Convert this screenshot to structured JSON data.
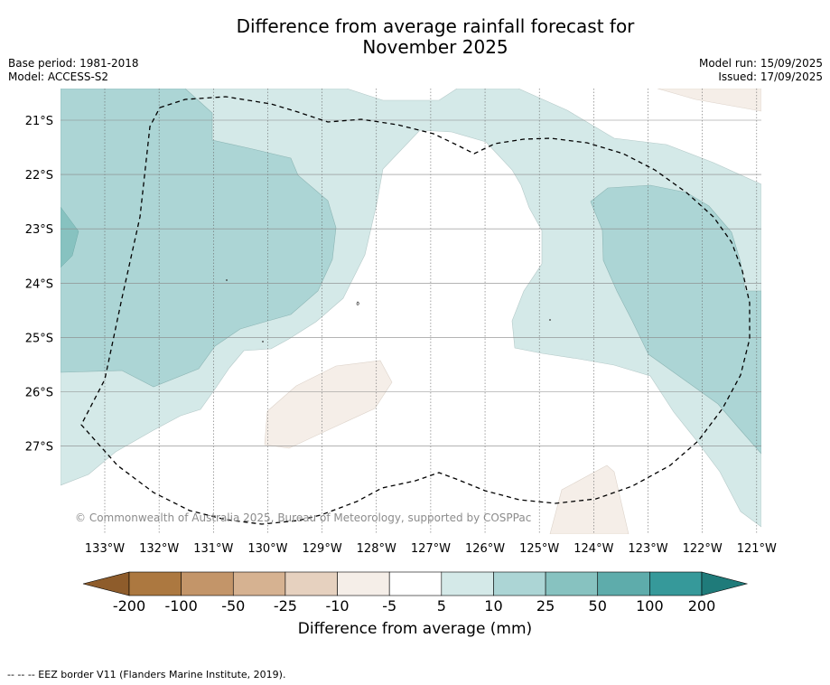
{
  "title_line1": "Difference from average rainfall forecast for",
  "title_line2": "November 2025",
  "base_period": "Base period: 1981-2018",
  "model": "Model: ACCESS-S2",
  "model_run": "Model run: 15/09/2025",
  "issued": "Issued: 17/09/2025",
  "copyright": "© Commonwealth of Australia 2025, Bureau of Meteorology, supported by COSPPac",
  "map": {
    "lon_labels": [
      "133°W",
      "132°W",
      "131°W",
      "130°W",
      "129°W",
      "128°W",
      "127°W",
      "126°W",
      "125°W",
      "124°W",
      "123°W",
      "122°W",
      "121°W"
    ],
    "lat_labels": [
      "21°S",
      "22°S",
      "23°S",
      "24°S",
      "25°S",
      "26°S",
      "27°S"
    ],
    "border_style": "dashed"
  },
  "colorbar": {
    "title": "Difference from average (mm)",
    "tick_labels": [
      "-200",
      "-100",
      "-50",
      "-25",
      "-10",
      "-5",
      "5",
      "10",
      "25",
      "50",
      "100",
      "200"
    ],
    "colors": [
      "#ac7840",
      "#c39569",
      "#d6b291",
      "#e6d1bf",
      "#f5eee8",
      "#ffffff",
      "#d4e9e8",
      "#acd5d5",
      "#87c2c0",
      "#5eacab",
      "#36999a"
    ],
    "under_color": "#8e5c2b",
    "over_color": "#1f7b7a"
  },
  "footnote": "--  --  -- EEZ border V11 (Flanders Marine Institute, 2019)."
}
